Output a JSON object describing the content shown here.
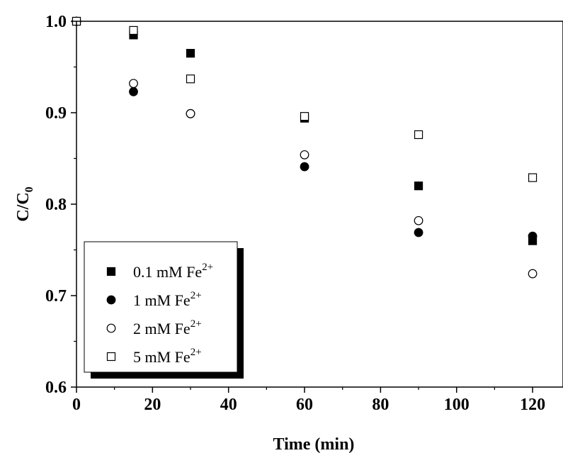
{
  "chart_data": {
    "type": "scatter",
    "xlabel": "Time (min)",
    "ylabel_main": "C/C",
    "ylabel_sub": "0",
    "xlim": [
      0,
      128
    ],
    "ylim": [
      0.6,
      1.0
    ],
    "xticks": [
      0,
      20,
      40,
      60,
      80,
      100,
      120
    ],
    "yticks": [
      0.6,
      0.7,
      0.8,
      0.9,
      1.0
    ],
    "xtick_labels": [
      "0",
      "20",
      "40",
      "60",
      "80",
      "100",
      "120"
    ],
    "ytick_labels": [
      "0.6",
      "0.7",
      "0.8",
      "0.9",
      "1.0"
    ],
    "legend_position": "bottom-left",
    "series": [
      {
        "legend_main": "0.1 mM Fe",
        "legend_sup": "2+",
        "marker": "square-filled",
        "x": [
          0,
          15,
          30,
          60,
          90,
          120
        ],
        "y": [
          1.0,
          0.985,
          0.965,
          0.894,
          0.82,
          0.76
        ]
      },
      {
        "legend_main": "1 mM Fe",
        "legend_sup": "2+",
        "marker": "circle-filled",
        "x": [
          0,
          15,
          30,
          60,
          90,
          120
        ],
        "y": [
          1.0,
          0.923,
          0.899,
          0.841,
          0.769,
          0.765
        ]
      },
      {
        "legend_main": "2 mM Fe",
        "legend_sup": "2+",
        "marker": "circle-open",
        "x": [
          0,
          15,
          30,
          60,
          90,
          120
        ],
        "y": [
          1.0,
          0.932,
          0.899,
          0.854,
          0.782,
          0.724
        ]
      },
      {
        "legend_main": "5 mM Fe",
        "legend_sup": "2+",
        "marker": "square-open",
        "x": [
          0,
          15,
          30,
          60,
          90,
          120
        ],
        "y": [
          1.0,
          0.99,
          0.937,
          0.896,
          0.876,
          0.829
        ]
      }
    ]
  }
}
